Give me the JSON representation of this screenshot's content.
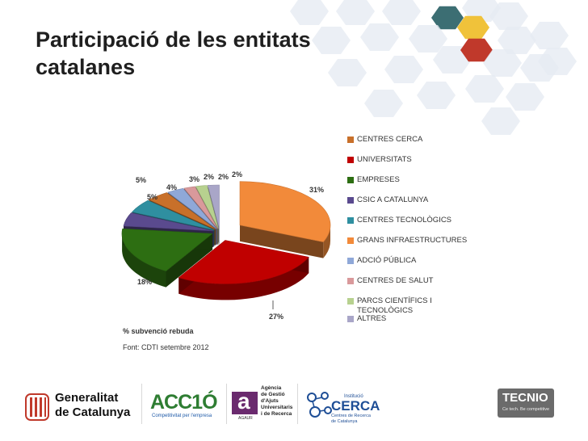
{
  "header": {
    "title_line1": "Participació de les entitats",
    "title_line2": "catalanes"
  },
  "chart_data": {
    "type": "pie",
    "title": "Participació de les entitats catalanes",
    "style": "3d-exploded",
    "categories": [
      "GRANS INFRAESTRUCTURES",
      "UNIVERSITATS",
      "EMPRESES",
      "CSIC A CATALUNYA",
      "CENTRES TECNOLÒGICS",
      "CENTRES CERCA",
      "ADCIÓ PÚBLICA",
      "CENTRES DE SALUT",
      "PARCS CIENTÍFICS I TECNOLÒGICS",
      "ALTRES"
    ],
    "values": [
      31,
      27,
      18,
      5,
      5,
      4,
      3,
      2,
      2,
      2
    ],
    "labels": [
      "31%",
      "27%",
      "18%",
      "5%",
      "5%",
      "4%",
      "3%",
      "2%",
      "2%",
      "2%"
    ],
    "colors": [
      "#F28A3A",
      "#C00000",
      "#2D6E12",
      "#5A4A8E",
      "#2F8FA0",
      "#C8702A",
      "#8FA8D8",
      "#D9999B",
      "#B7D18F",
      "#A9A6C8"
    ],
    "legend_position": "right",
    "legend_order": [
      "CENTRES CERCA",
      "UNIVERSITATS",
      "EMPRESES",
      "CSIC A CATALUNYA",
      "CENTRES TECNOLÒGICS",
      "GRANS INFRAESTRUCTURES",
      "ADCIÓ PÚBLICA",
      "CENTRES DE SALUT",
      "PARCS CIENTÍFICS I TECNOLÒGICS",
      "ALTRES"
    ],
    "legend_colors": [
      "#C8702A",
      "#C00000",
      "#2D6E12",
      "#5A4A8E",
      "#2F8FA0",
      "#F28A3A",
      "#8FA8D8",
      "#D9999B",
      "#B7D18F",
      "#A9A6C8"
    ],
    "xlabel": "% subvenció rebuda"
  },
  "footer": {
    "axis_note": "% subvenció rebuda",
    "source": "Font: CDTI setembre 2012"
  },
  "logos": {
    "generalitat_line1": "Generalitat",
    "generalitat_line2": "de Catalunya",
    "acc10": "ACC1Ó",
    "acc10_tagline": "Competitivitat per l'empresa",
    "agaur_letter": "a",
    "agaur_abbr": "AGAUR",
    "agaur_line1": "Agència",
    "agaur_line2": "de Gestió",
    "agaur_line3": "d'Ajuts",
    "agaur_line4": "Universitaris",
    "agaur_line5": "i de Recerca",
    "cerca_small": "Institució",
    "cerca_big": "CERCA",
    "cerca_sub1": "Centres de Recerca",
    "cerca_sub2": "de Catalunya",
    "tecnio": "TECNIO",
    "tecnio_tagline": "Ce tech. Be competitive"
  },
  "colors": {
    "hex_light": "#E6EBF3",
    "hex_teal": "#3C6E73",
    "hex_yellow": "#F0C23A",
    "hex_red": "#C0392B",
    "acc10_green": "#2E7D32",
    "acc10_blue": "#1E5AA8",
    "agaur_purple": "#6A2A6E",
    "cerca_blue": "#1E4E96"
  }
}
